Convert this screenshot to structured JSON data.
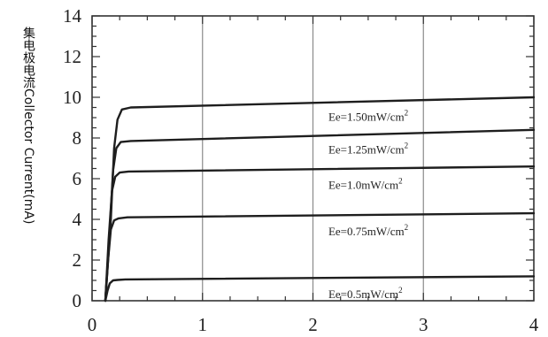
{
  "chart_data": {
    "type": "line",
    "title": "",
    "xlabel": "",
    "ylabel": "集电极电流Collector Current(mA)",
    "xlim": [
      0,
      4
    ],
    "ylim": [
      0,
      14
    ],
    "x_ticks": [
      "0",
      "1",
      "2",
      "3",
      "4"
    ],
    "y_ticks": [
      "0",
      "2",
      "4",
      "6",
      "8",
      "10",
      "12",
      "14"
    ],
    "grid": true,
    "series": [
      {
        "name": "Ee=1.50mW/cm2",
        "label_main": "Ee=1.50mW/cm",
        "label_sup": "2",
        "x": [
          0.12,
          0.17,
          0.2,
          0.23,
          0.27,
          0.35,
          4.0
        ],
        "y": [
          0,
          4.0,
          7.5,
          8.9,
          9.4,
          9.5,
          10.0
        ]
      },
      {
        "name": "Ee=1.25mW/cm2",
        "label_main": "Ee=1.25mW/cm",
        "label_sup": "2",
        "x": [
          0.12,
          0.16,
          0.19,
          0.22,
          0.26,
          0.35,
          4.0
        ],
        "y": [
          0,
          3.5,
          6.4,
          7.5,
          7.8,
          7.85,
          8.4
        ]
      },
      {
        "name": "Ee=1.0mW/cm2",
        "label_main": "Ee=1.0mW/cm",
        "label_sup": "2",
        "x": [
          0.12,
          0.15,
          0.18,
          0.21,
          0.25,
          0.33,
          4.0
        ],
        "y": [
          0,
          3.0,
          5.4,
          6.1,
          6.3,
          6.35,
          6.6
        ]
      },
      {
        "name": "Ee=0.75mW/cm2",
        "label_main": "Ee=0.75mW/cm",
        "label_sup": "2",
        "x": [
          0.12,
          0.145,
          0.17,
          0.2,
          0.24,
          0.32,
          4.0
        ],
        "y": [
          0,
          2.0,
          3.5,
          3.95,
          4.05,
          4.1,
          4.3
        ]
      },
      {
        "name": "Ee=0.5mW/cm2",
        "label_main": "Ee=0.5mW/cm",
        "label_sup": "2",
        "x": [
          0.12,
          0.14,
          0.16,
          0.19,
          0.23,
          0.3,
          4.0
        ],
        "y": [
          0,
          0.5,
          0.85,
          1.0,
          1.02,
          1.05,
          1.2
        ]
      }
    ]
  }
}
